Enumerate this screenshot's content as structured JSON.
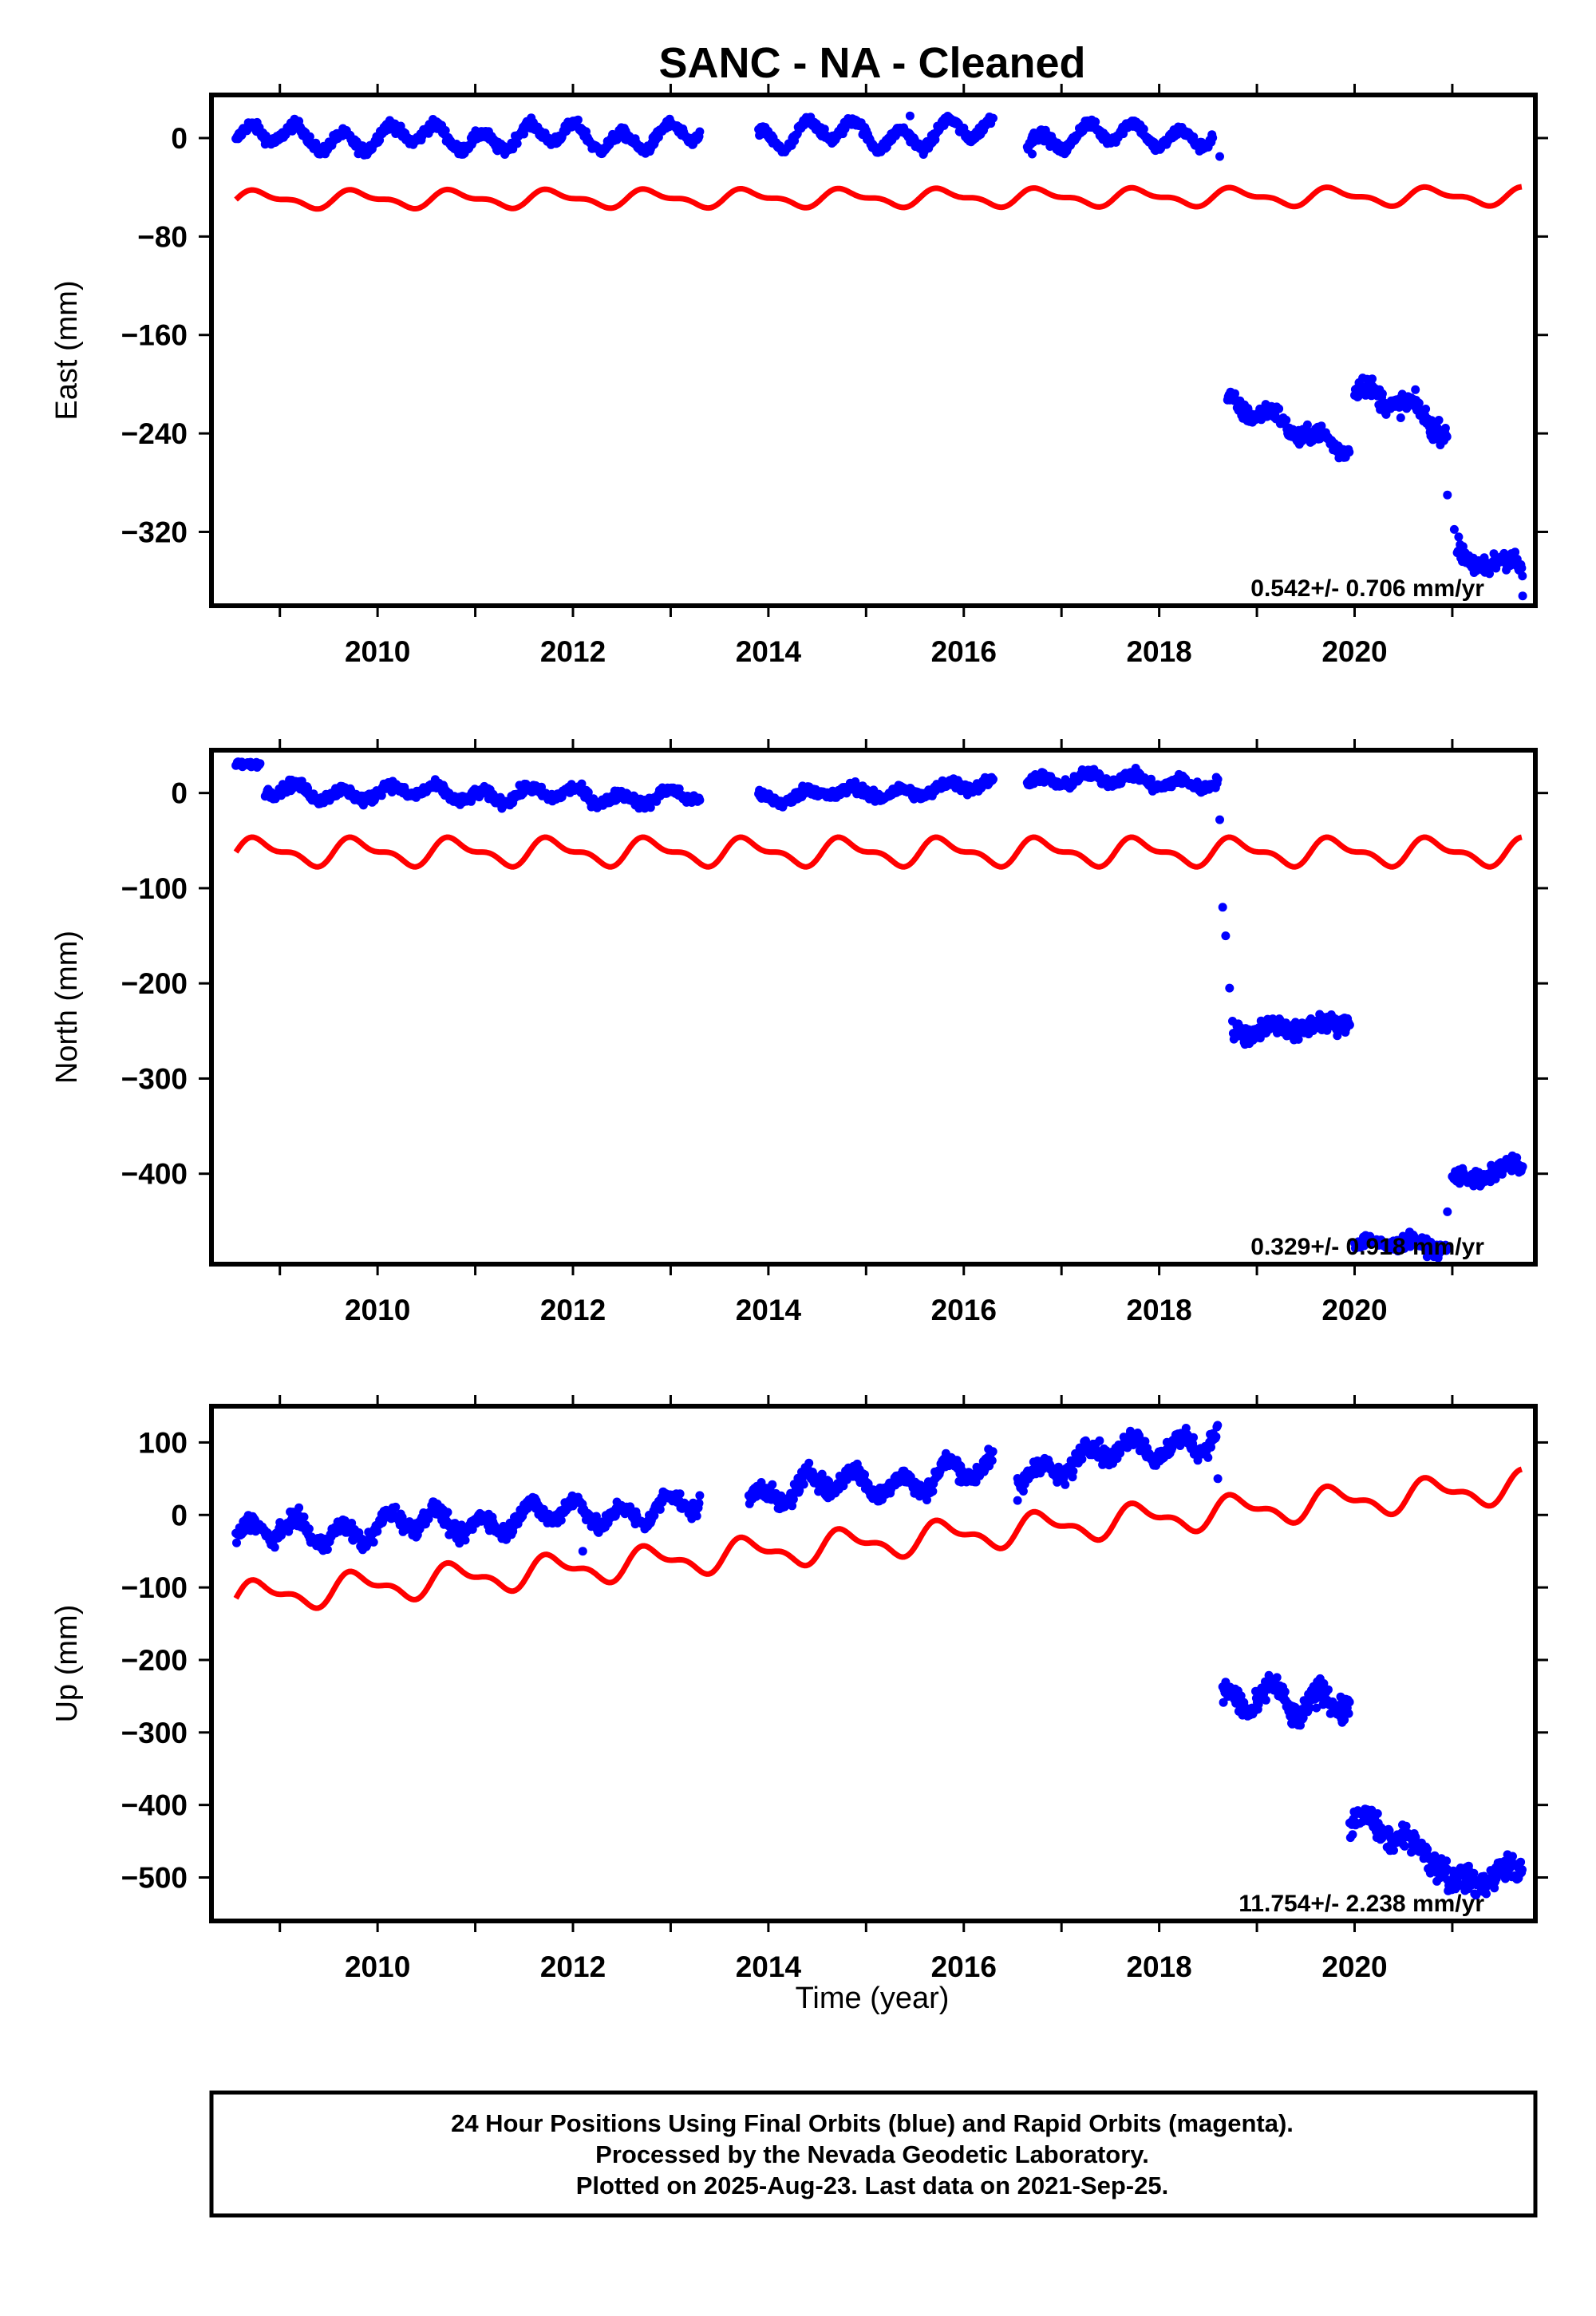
{
  "title": "SANC  - NA - Cleaned",
  "xlabel": "Time (year)",
  "colors": {
    "final_orbit_points": "#0000ff",
    "model_curve": "#ff0000",
    "frame": "#000000"
  },
  "footer": {
    "line1": "24 Hour Positions Using Final Orbits (blue) and Rapid Orbits (magenta).",
    "line2": "Processed by the Nevada Geodetic Laboratory.",
    "line3": "Plotted on 2025-Aug-23. Last data on 2021-Sep-25."
  },
  "chart_data": [
    {
      "type": "scatter",
      "name": "east",
      "ylabel": "East (mm)",
      "xlim": [
        2008.3,
        2021.85
      ],
      "ylim": [
        -380,
        35
      ],
      "xticks": [
        2010,
        2012,
        2014,
        2016,
        2018,
        2020
      ],
      "yticks": [
        0,
        -80,
        -160,
        -240,
        -320
      ],
      "rate_text": "0.542+/- 0.706 mm/yr",
      "segments": [
        {
          "x0": 2008.55,
          "x1": 2013.3,
          "offset": 0,
          "trend": 0.2,
          "amp": 8,
          "noise": 3
        },
        {
          "x0": 2013.9,
          "x1": 2016.3,
          "offset": 2,
          "trend": 0.8,
          "amp": 9,
          "noise": 3
        },
        {
          "x0": 2016.65,
          "x1": 2018.55,
          "offset": 0,
          "trend": 2.0,
          "amp": 8,
          "noise": 3
        },
        {
          "x0": 2018.7,
          "x1": 2019.95,
          "offset": -218,
          "trend": -25,
          "amp": 6,
          "noise": 5
        },
        {
          "x0": 2020.0,
          "x1": 2020.95,
          "offset": -205,
          "trend": -30,
          "amp": 6,
          "noise": 6
        },
        {
          "x0": 2021.05,
          "x1": 2021.72,
          "offset": -338,
          "trend": -20,
          "amp": 6,
          "noise": 7
        }
      ],
      "outliers": [
        [
          2015.45,
          18
        ],
        [
          2016.7,
          -13
        ],
        [
          2018.62,
          -15
        ],
        [
          2020.95,
          -290
        ],
        [
          2021.02,
          -318
        ],
        [
          2021.72,
          -372
        ]
      ],
      "model": {
        "base": -50,
        "trend": 0.2,
        "amp": 6,
        "anchor": 2008.55
      }
    },
    {
      "type": "scatter",
      "name": "north",
      "ylabel": "North (mm)",
      "xlim": [
        2008.3,
        2021.85
      ],
      "ylim": [
        -495,
        45
      ],
      "xticks": [
        2010,
        2012,
        2014,
        2016,
        2018,
        2020
      ],
      "yticks": [
        0,
        -100,
        -200,
        -300,
        -400
      ],
      "rate_text": "0.329+/- 0.918 mm/yr",
      "segments": [
        {
          "x0": 2008.55,
          "x1": 2008.8,
          "offset": 30,
          "trend": 0,
          "amp": 0,
          "noise": 2
        },
        {
          "x0": 2008.85,
          "x1": 2013.3,
          "offset": 2,
          "trend": -1.5,
          "amp": 6,
          "noise": 4
        },
        {
          "x0": 2013.9,
          "x1": 2016.3,
          "offset": -5,
          "trend": 5,
          "amp": 5,
          "noise": 4
        },
        {
          "x0": 2016.65,
          "x1": 2018.6,
          "offset": 15,
          "trend": -2,
          "amp": 5,
          "noise": 4
        },
        {
          "x0": 2018.75,
          "x1": 2019.95,
          "offset": -255,
          "trend": 15,
          "amp": 5,
          "noise": 7
        },
        {
          "x0": 2020.0,
          "x1": 2020.95,
          "offset": -475,
          "trend": 0,
          "amp": 4,
          "noise": 5
        },
        {
          "x0": 2021.0,
          "x1": 2021.72,
          "offset": -405,
          "trend": 15,
          "amp": 5,
          "noise": 6
        }
      ],
      "outliers": [
        [
          2018.62,
          -28
        ],
        [
          2018.65,
          -120
        ],
        [
          2018.68,
          -150
        ],
        [
          2018.72,
          -205
        ],
        [
          2020.95,
          -440
        ]
      ],
      "model": {
        "base": -62,
        "trend": 0,
        "amp": 12,
        "anchor": 2008.55
      }
    },
    {
      "type": "scatter",
      "name": "up",
      "ylabel": "Up (mm)",
      "xlim": [
        2008.3,
        2021.85
      ],
      "ylim": [
        -560,
        150
      ],
      "xticks": [
        2010,
        2012,
        2014,
        2016,
        2018,
        2020
      ],
      "yticks": [
        100,
        0,
        -100,
        -200,
        -300,
        -400,
        -500
      ],
      "rate_text": "11.754+/- 2.238 mm/yr",
      "segments": [
        {
          "x0": 2008.55,
          "x1": 2013.3,
          "offset": -30,
          "trend": 9,
          "amp": 15,
          "noise": 8
        },
        {
          "x0": 2013.8,
          "x1": 2016.3,
          "offset": 30,
          "trend": 12,
          "amp": 15,
          "noise": 9
        },
        {
          "x0": 2016.55,
          "x1": 2018.6,
          "offset": 60,
          "trend": 25,
          "amp": 15,
          "noise": 9
        },
        {
          "x0": 2018.65,
          "x1": 2019.95,
          "offset": -270,
          "trend": 20,
          "amp": 20,
          "noise": 12
        },
        {
          "x0": 2019.95,
          "x1": 2020.95,
          "offset": -420,
          "trend": -60,
          "amp": 10,
          "noise": 12
        },
        {
          "x0": 2020.95,
          "x1": 2021.72,
          "offset": -505,
          "trend": 15,
          "amp": 8,
          "noise": 12
        }
      ],
      "outliers": [
        [
          2012.1,
          -50
        ],
        [
          2016.55,
          20
        ],
        [
          2018.6,
          50
        ]
      ],
      "model": {
        "base": -115,
        "trend": 11.754,
        "amp": 18,
        "anchor": 2008.55
      }
    }
  ]
}
